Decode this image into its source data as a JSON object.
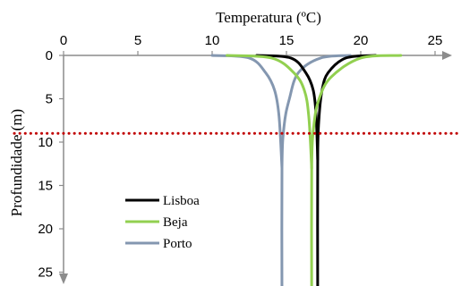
{
  "chart_data": {
    "type": "line",
    "xlabel": "Temperatura (ºC)",
    "ylabel": "Profundidade (m)",
    "x_axis_position": "top",
    "y_axis_direction": "downward",
    "xlim": [
      0,
      26
    ],
    "ylim": [
      0,
      26
    ],
    "xticks": [
      0,
      5,
      10,
      15,
      20,
      25
    ],
    "yticks": [
      0,
      5,
      10,
      15,
      20,
      25
    ],
    "grid": false,
    "legend_position": "bottom-left",
    "reference_line": {
      "depth": 9,
      "color": "#c00000",
      "style": "dotted"
    },
    "series": [
      {
        "name": "Lisboa",
        "color": "#000000",
        "warm_profile": [
          [
            21,
            0
          ],
          [
            19,
            0.3
          ],
          [
            17.8,
            2
          ],
          [
            17.4,
            4
          ],
          [
            17.2,
            7
          ],
          [
            17.1,
            12
          ],
          [
            17.1,
            28
          ]
        ],
        "cold_profile": [
          [
            13,
            0
          ],
          [
            15.3,
            0.3
          ],
          [
            16.3,
            2
          ],
          [
            16.8,
            4
          ],
          [
            17.0,
            7
          ],
          [
            17.1,
            12
          ]
        ]
      },
      {
        "name": "Beja",
        "color": "#92d050",
        "warm_profile": [
          [
            22.7,
            0
          ],
          [
            20,
            0.3
          ],
          [
            18,
            2.5
          ],
          [
            17.2,
            5
          ],
          [
            16.85,
            8
          ],
          [
            16.7,
            13
          ],
          [
            16.7,
            28
          ]
        ],
        "cold_profile": [
          [
            11,
            0
          ],
          [
            14,
            0.3
          ],
          [
            15.5,
            2
          ],
          [
            16.2,
            4
          ],
          [
            16.5,
            7
          ],
          [
            16.7,
            13
          ]
        ]
      },
      {
        "name": "Porto",
        "color": "#8497b0",
        "warm_profile": [
          [
            19.3,
            0
          ],
          [
            17.3,
            0.3
          ],
          [
            15.8,
            2
          ],
          [
            15.2,
            5
          ],
          [
            14.85,
            8
          ],
          [
            14.7,
            13
          ],
          [
            14.7,
            28
          ]
        ],
        "cold_profile": [
          [
            10,
            0
          ],
          [
            12.5,
            0.3
          ],
          [
            13.6,
            2
          ],
          [
            14.2,
            4
          ],
          [
            14.5,
            7
          ],
          [
            14.7,
            13
          ]
        ]
      }
    ]
  }
}
